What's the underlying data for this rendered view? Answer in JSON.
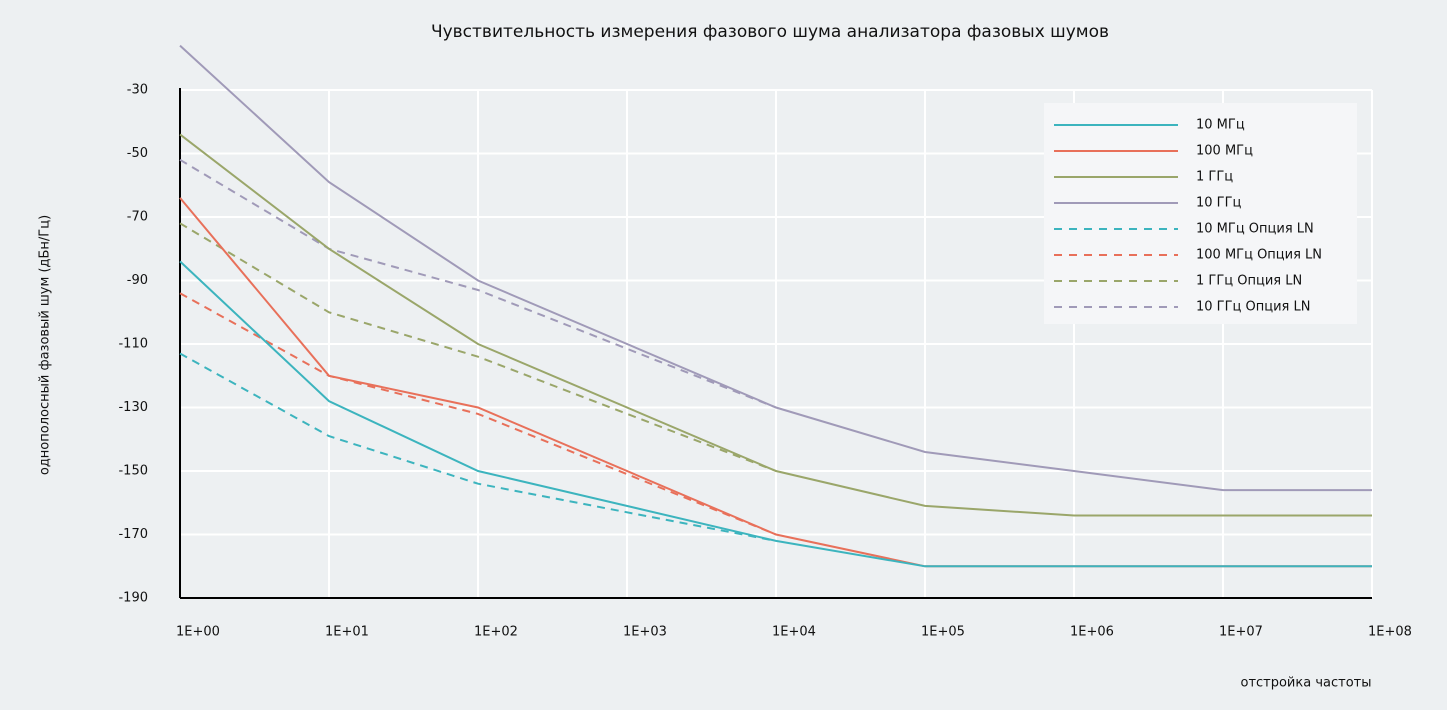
{
  "chart_data": {
    "type": "line",
    "title": "Чувствительность измерения фазового шума анализатора фазовых шумов",
    "x_label": "отстройка частоты",
    "y_label": "однополосный фазовый шум (дБн/Гц)",
    "log_x": true,
    "grid": true,
    "legend": "top-right",
    "xlim": [
      1,
      100000000
    ],
    "ylim": [
      -190,
      -30
    ],
    "xticks": [
      {
        "value": 1,
        "label": "1E+00"
      },
      {
        "value": 10,
        "label": "1E+01"
      },
      {
        "value": 100,
        "label": "1E+02"
      },
      {
        "value": 1000,
        "label": "1E+03"
      },
      {
        "value": 10000,
        "label": "1E+04"
      },
      {
        "value": 100000,
        "label": "1E+05"
      },
      {
        "value": 1000000,
        "label": "1E+06"
      },
      {
        "value": 10000000,
        "label": "1E+07"
      },
      {
        "value": 100000000,
        "label": "1E+08"
      }
    ],
    "yticks": [
      -30,
      -50,
      -70,
      -90,
      -110,
      -130,
      -150,
      -170,
      -190
    ],
    "series": [
      {
        "name": "10 МГц",
        "color": "#3cb4be",
        "dash": false,
        "x": [
          1,
          10,
          100,
          10000,
          100000,
          100000000
        ],
        "values": [
          -84,
          -128,
          -150,
          -172,
          -180,
          -180
        ]
      },
      {
        "name": "100 МГц",
        "color": "#e8705a",
        "dash": false,
        "x": [
          1,
          10,
          100,
          10000,
          100000,
          100000000
        ],
        "values": [
          -64,
          -120,
          -130,
          -170,
          -180,
          -180
        ]
      },
      {
        "name": "1 ГГц",
        "color": "#9aa66a",
        "dash": false,
        "x": [
          1,
          10,
          100,
          10000,
          100000,
          1000000,
          10000000,
          100000000
        ],
        "values": [
          -44,
          -80,
          -110,
          -150,
          -161,
          -164,
          -164,
          -164
        ]
      },
      {
        "name": "10 ГГц",
        "color": "#a09ab8",
        "dash": false,
        "x": [
          1,
          10,
          100,
          10000,
          100000,
          1000000,
          10000000,
          100000000
        ],
        "values": [
          -16,
          -59,
          -90,
          -130,
          -144,
          -150,
          -156,
          -156
        ]
      },
      {
        "name": "10 МГц Опция LN",
        "color": "#3cb4be",
        "dash": true,
        "x": [
          1,
          10,
          100,
          10000
        ],
        "values": [
          -113,
          -139,
          -154,
          -172
        ]
      },
      {
        "name": "100 МГц Опция LN",
        "color": "#e8705a",
        "dash": true,
        "x": [
          1,
          10,
          100,
          10000
        ],
        "values": [
          -94,
          -120,
          -132,
          -170
        ]
      },
      {
        "name": "1 ГГц Опция LN",
        "color": "#9aa66a",
        "dash": true,
        "x": [
          1,
          10,
          100,
          10000
        ],
        "values": [
          -72,
          -100,
          -114,
          -150
        ]
      },
      {
        "name": "10 ГГц Опция LN",
        "color": "#a09ab8",
        "dash": true,
        "x": [
          1,
          10,
          100,
          10000
        ],
        "values": [
          -52,
          -80,
          -93,
          -130
        ]
      }
    ]
  }
}
